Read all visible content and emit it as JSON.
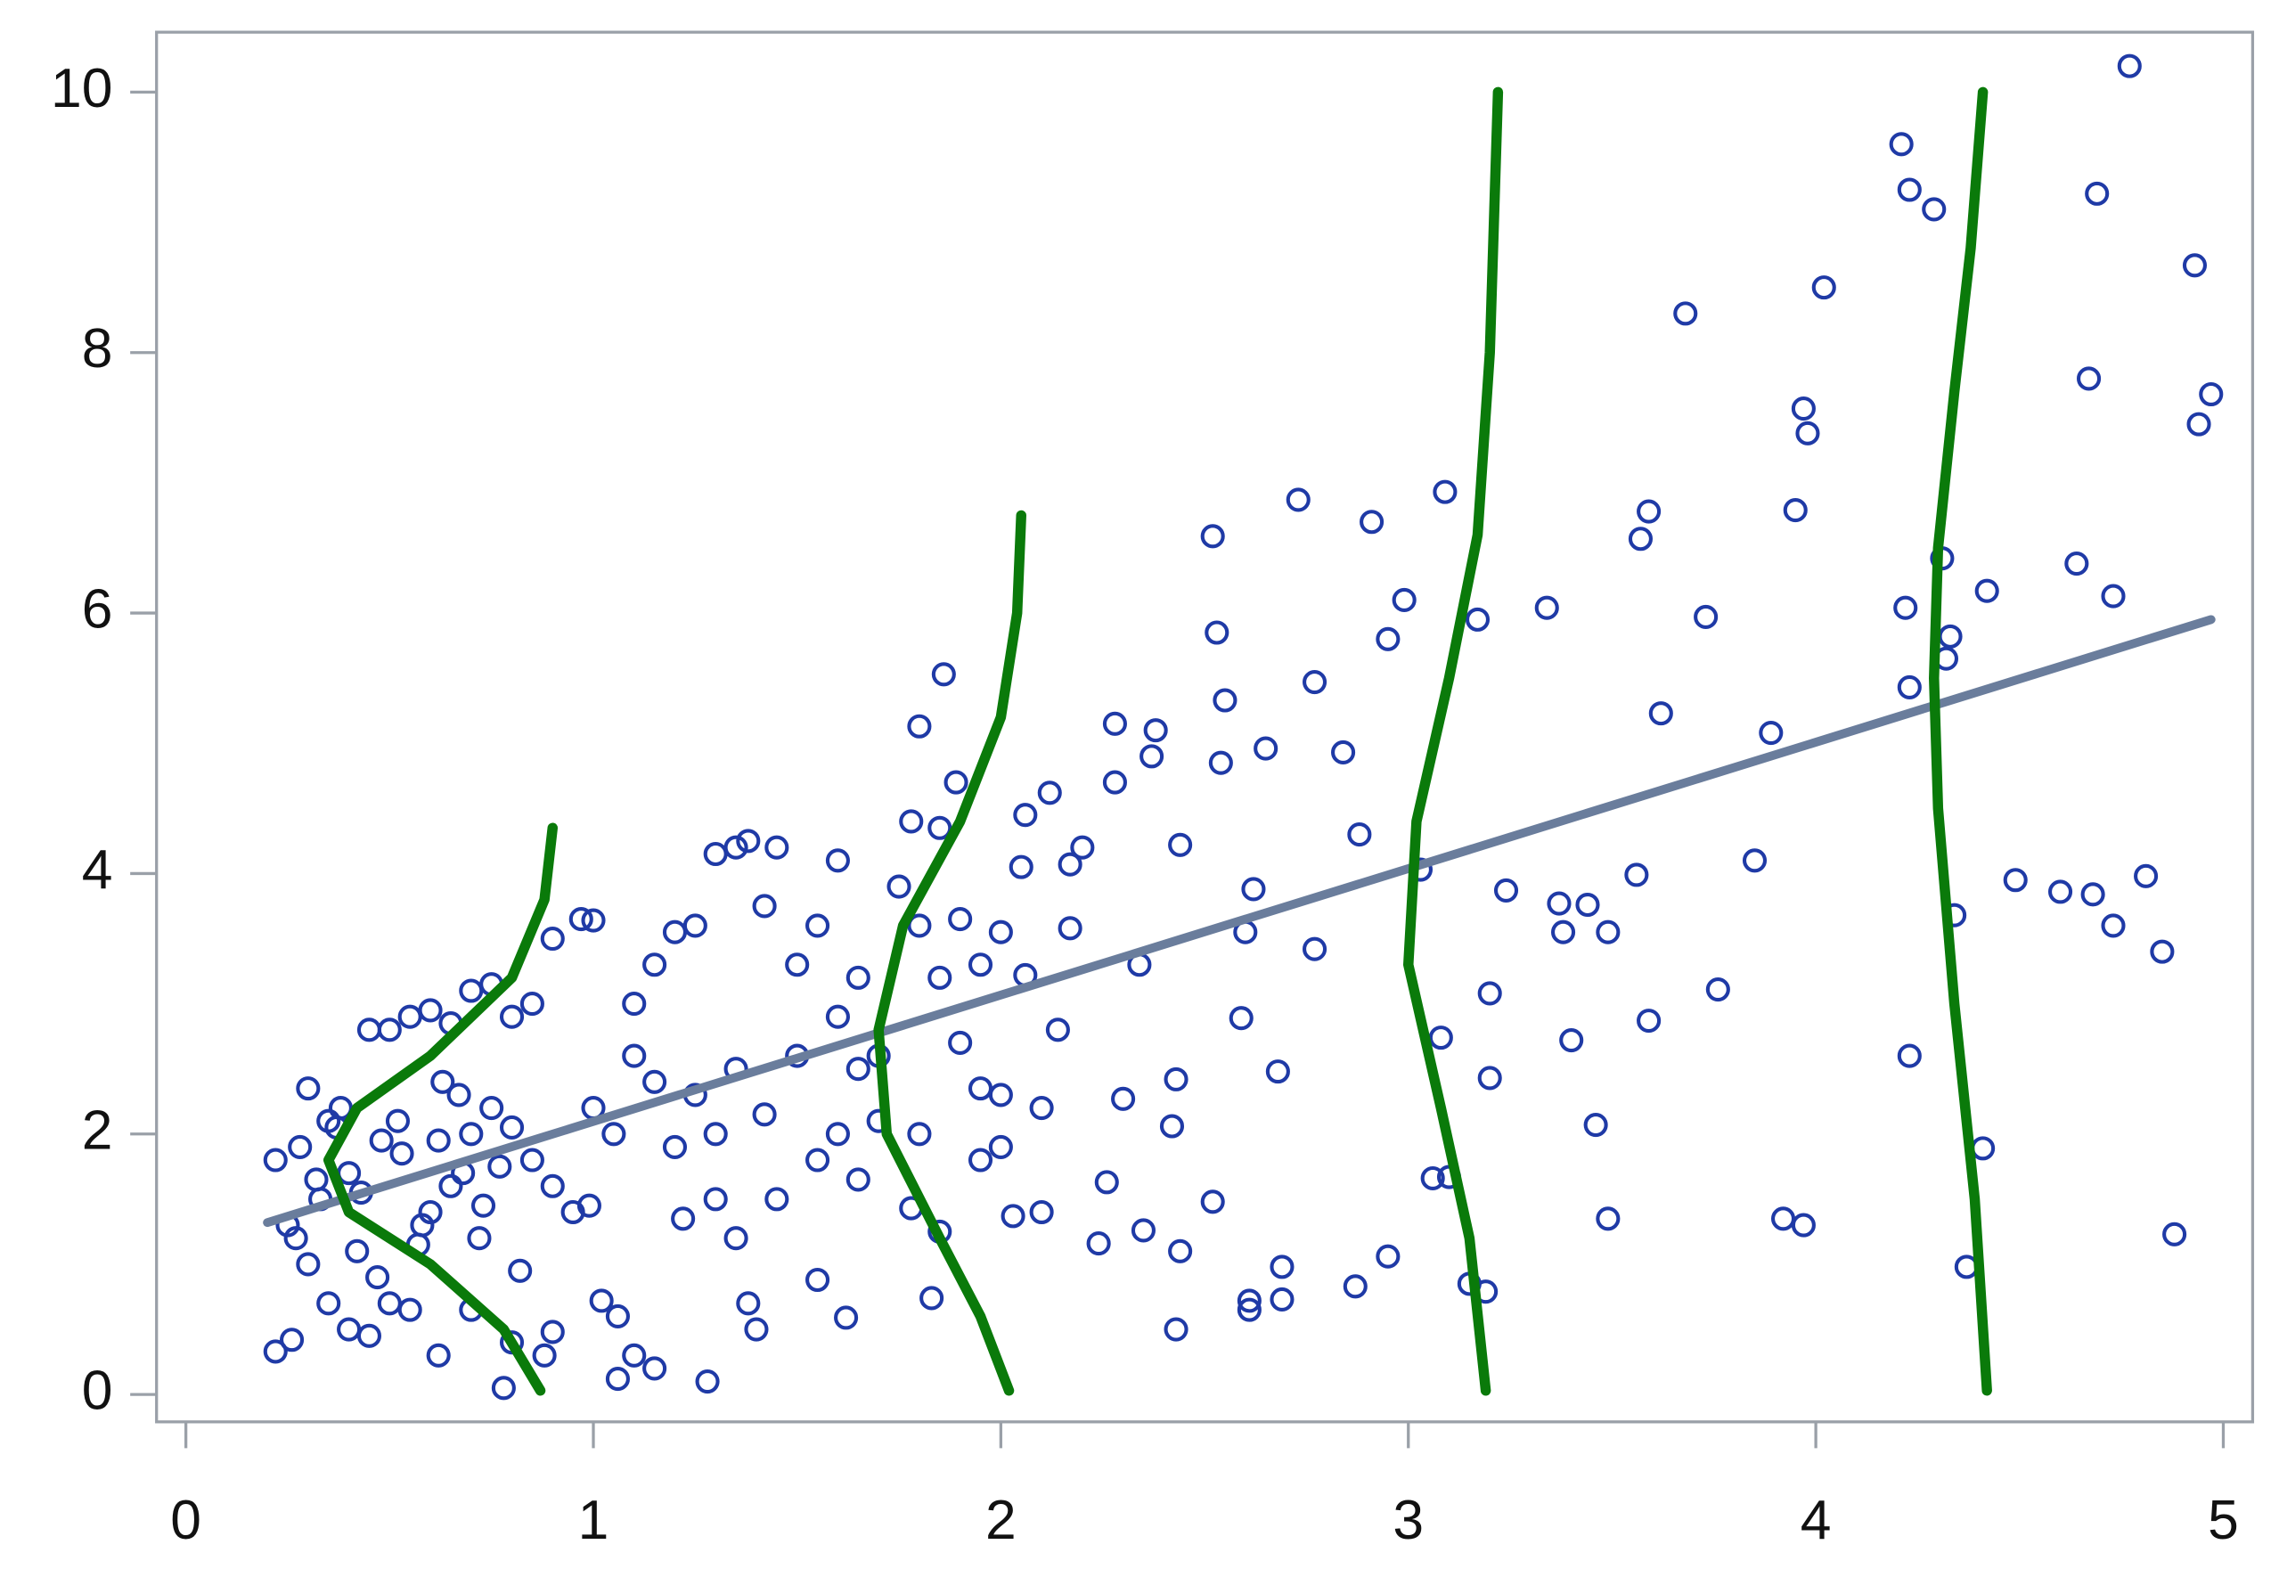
{
  "chart_data": {
    "type": "scatter",
    "xlim": [
      -0.072,
      5.072
    ],
    "ylim": [
      -0.21,
      10.46
    ],
    "xticks": [
      0,
      1,
      2,
      3,
      4,
      5
    ],
    "yticks": [
      0,
      2,
      4,
      6,
      8,
      10
    ],
    "series": [
      {
        "type": "scatter",
        "color": "#1f3aa6",
        "x": [
          4.77,
          4.21,
          4.23,
          4.29,
          4.69,
          4.93,
          4.02,
          3.68,
          4.67,
          4.97,
          4.94,
          3.97,
          3.98,
          3.09,
          2.73,
          2.91,
          3.59,
          3.57,
          2.52,
          3.95,
          4.64,
          4.31,
          4.73,
          4.42,
          2.99,
          3.34,
          3.17,
          3.73,
          4.22,
          2.53,
          2.95,
          4.33,
          4.32,
          2.77,
          1.86,
          1.8,
          2.55,
          4.23,
          3.62,
          2.28,
          2.38,
          3.89,
          2.65,
          2.84,
          2.54,
          1.89,
          2.37,
          2.28,
          2.12,
          2.06,
          2.88,
          2.44,
          2.2,
          2.17,
          3.85,
          3.03,
          3.56,
          4.49,
          4.6,
          4.68,
          4.81,
          3.24,
          2.62,
          3.37,
          3.44,
          3.38,
          3.49,
          4.34,
          4.73,
          4.85,
          2.77,
          2.6,
          2.34,
          2.17,
          2.06,
          3.2,
          3.76,
          2.59,
          3.59,
          3.08,
          3.4,
          2.14,
          2.68,
          3.2,
          4.23,
          2.43,
          2.3,
          2.1,
          2.42,
          3.46,
          3.06,
          3.1,
          4.41,
          2.26,
          2.52,
          3.49,
          3.92,
          3.97,
          4.88,
          2.35,
          2.24,
          2.44,
          2.95,
          2.69,
          4.37,
          3.15,
          2.87,
          3.19,
          2.61,
          2.69,
          2.43,
          2.61,
          2.03,
          2.1,
          1.78,
          1.83,
          1.62,
          1.55,
          0.22,
          0.25,
          0.22,
          0.26,
          0.3,
          0.35,
          0.4,
          0.45,
          0.5,
          0.55,
          0.6,
          0.65,
          0.7,
          0.75,
          0.8,
          0.85,
          0.9,
          0.97,
          1.0,
          0.3,
          0.35,
          0.4,
          0.45,
          0.5,
          0.55,
          0.62,
          0.7,
          0.78,
          0.8,
          0.88,
          0.9,
          0.6,
          0.65,
          0.7,
          0.75,
          0.8,
          0.85,
          0.9,
          0.95,
          0.99,
          1.0,
          1.02,
          1.06,
          1.06,
          1.1,
          1.15,
          1.28,
          1.22,
          1.3,
          1.35,
          1.38,
          1.4,
          1.1,
          1.15,
          1.2,
          1.25,
          1.3,
          1.35,
          1.38,
          1.45,
          1.42,
          1.5,
          1.55,
          1.6,
          1.65,
          1.6,
          1.5,
          1.42,
          1.35,
          1.25,
          1.15,
          1.1,
          1.05,
          1.2,
          1.3,
          1.45,
          1.55,
          1.6,
          1.65,
          1.7,
          1.75,
          1.8,
          1.85,
          1.9,
          1.95,
          2.0,
          2.05,
          1.78,
          1.85,
          1.9,
          1.95,
          2.0,
          2.0,
          1.95,
          1.85,
          1.8,
          1.7,
          1.65,
          0.28,
          0.33,
          0.38,
          0.42,
          0.48,
          0.52,
          0.58,
          0.63,
          0.68,
          0.72,
          0.27,
          0.32,
          0.37,
          0.43,
          0.47,
          0.53,
          0.57,
          0.62,
          0.67,
          0.73,
          0.77,
          0.82
        ],
        "y": [
          10.2,
          9.6,
          9.25,
          9.1,
          9.22,
          8.67,
          8.5,
          8.3,
          7.8,
          7.68,
          7.45,
          7.57,
          7.38,
          6.93,
          6.87,
          6.7,
          6.78,
          6.57,
          6.59,
          6.79,
          6.38,
          6.42,
          6.13,
          6.17,
          6.1,
          6.04,
          5.95,
          5.97,
          6.04,
          5.85,
          5.8,
          5.82,
          5.65,
          5.47,
          5.53,
          5.13,
          5.33,
          5.43,
          5.23,
          5.15,
          5.1,
          5.08,
          4.96,
          4.93,
          4.85,
          4.7,
          4.9,
          4.7,
          4.62,
          4.45,
          4.3,
          4.22,
          4.2,
          4.07,
          4.1,
          4.03,
          3.99,
          3.95,
          3.86,
          3.84,
          3.98,
          3.87,
          3.88,
          3.77,
          3.76,
          3.55,
          3.55,
          3.68,
          3.6,
          3.4,
          3.42,
          3.55,
          3.3,
          3.58,
          3.22,
          3.08,
          3.11,
          2.89,
          2.87,
          2.74,
          2.72,
          2.8,
          2.48,
          2.43,
          2.6,
          2.42,
          2.27,
          2.2,
          2.06,
          2.07,
          1.66,
          1.67,
          1.89,
          1.63,
          1.48,
          1.35,
          1.35,
          1.3,
          1.23,
          1.26,
          1.16,
          1.1,
          1.06,
          0.98,
          0.98,
          0.85,
          0.83,
          0.79,
          0.72,
          0.73,
          0.5,
          0.65,
          1.37,
          1.4,
          1.43,
          0.74,
          0.59,
          0.88,
          1.8,
          1.3,
          0.33,
          0.42,
          2.35,
          2.1,
          1.7,
          2.8,
          2.8,
          2.9,
          2.95,
          2.85,
          3.1,
          3.15,
          2.9,
          3.0,
          3.5,
          3.65,
          3.64,
          1.0,
          0.7,
          0.5,
          0.45,
          0.7,
          0.65,
          0.3,
          0.65,
          0.05,
          0.4,
          0.3,
          0.48,
          1.4,
          1.6,
          2.0,
          2.2,
          2.05,
          1.8,
          1.6,
          1.4,
          1.45,
          2.2,
          0.72,
          0.6,
          0.12,
          0.3,
          0.2,
          0.1,
          1.35,
          1.5,
          1.2,
          0.7,
          0.5,
          3.0,
          3.3,
          3.55,
          3.6,
          4.15,
          4.2,
          4.25,
          4.2,
          3.75,
          3.3,
          3.6,
          4.1,
          3.2,
          2.9,
          2.6,
          2.15,
          2.5,
          2.3,
          2.4,
          2.6,
          2.0,
          1.9,
          2.0,
          1.5,
          1.8,
          2.0,
          1.65,
          2.1,
          3.9,
          3.6,
          3.2,
          3.65,
          3.3,
          3.55,
          4.05,
          4.4,
          4.35,
          2.7,
          2.35,
          2.3,
          1.9,
          1.8,
          1.25,
          2.0,
          2.6,
          2.5,
          1.9,
          1.5,
          2.2,
          1.1,
          1.95,
          2.1,
          1.3,
          2.4,
          1.7,
          1.2,
          1.2,
          1.65,
          2.05,
          1.55,
          0.9,
          1.85,
          1.15,
          1.95,
          2.3,
          1.45,
          1.75,
          0.95
        ]
      },
      {
        "type": "line",
        "color": "#6a7d9c",
        "width": 6,
        "x": [
          0.2,
          4.97
        ],
        "y": [
          1.32,
          5.95
        ]
      },
      {
        "type": "line",
        "color": "#0a7a0a",
        "width": 7,
        "x": [
          0.87,
          0.78,
          0.6,
          0.4,
          0.35,
          0.42,
          0.6,
          0.8,
          0.88,
          0.9
        ],
        "y": [
          0.03,
          0.5,
          1.0,
          1.4,
          1.8,
          2.2,
          2.6,
          3.2,
          3.8,
          4.35
        ]
      },
      {
        "type": "line",
        "color": "#0a7a0a",
        "width": 7,
        "x": [
          2.02,
          1.95,
          1.85,
          1.72,
          1.7,
          1.76,
          1.9,
          2.0,
          2.04,
          2.05
        ],
        "y": [
          0.03,
          0.6,
          1.2,
          2.0,
          2.8,
          3.6,
          4.4,
          5.2,
          6.0,
          6.75
        ]
      },
      {
        "type": "line",
        "color": "#0a7a0a",
        "width": 7,
        "x": [
          3.19,
          3.15,
          3.08,
          3.0,
          3.02,
          3.1,
          3.17,
          3.2,
          3.22
        ],
        "y": [
          0.03,
          1.2,
          2.2,
          3.3,
          4.4,
          5.5,
          6.6,
          8.0,
          10.0
        ]
      },
      {
        "type": "line",
        "color": "#0a7a0a",
        "width": 7,
        "x": [
          4.42,
          4.39,
          4.34,
          4.3,
          4.29,
          4.3,
          4.34,
          4.38,
          4.41
        ],
        "y": [
          0.03,
          1.5,
          3.0,
          4.5,
          5.5,
          6.5,
          7.7,
          8.8,
          10.0
        ]
      }
    ]
  }
}
